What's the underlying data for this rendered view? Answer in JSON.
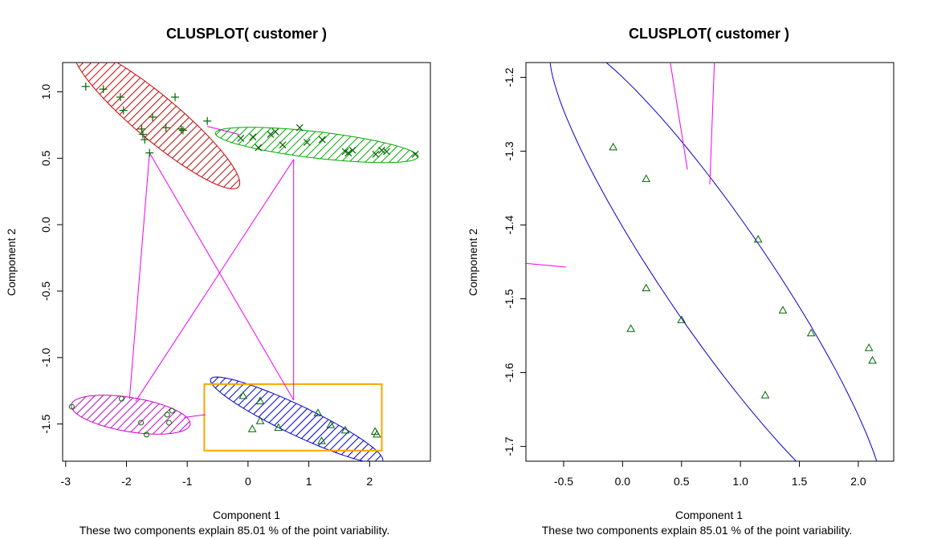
{
  "chart_data": [
    {
      "type": "scatter",
      "title": "CLUSPLOT( customer )",
      "xlabel": "Component 1",
      "ylabel": "Component 2",
      "subtitle": "These two components explain 85.01 % of the point variability.",
      "xlim": [
        -3.05,
        3.0
      ],
      "ylim": [
        -1.78,
        1.22
      ],
      "xticks": [
        "-3",
        "-2",
        "-1",
        "0",
        "1",
        "2"
      ],
      "yticks": [
        "-1.5",
        "-1.0",
        "-0.5",
        "0.0",
        "0.5",
        "1.0"
      ],
      "clusters": [
        {
          "marker": "plus",
          "color": "#cc0000",
          "fill": "hatched",
          "ellipse": {
            "cx": -1.5,
            "cy": 0.8,
            "a": 1.45,
            "b": 0.2,
            "angle_deg": -20
          },
          "points": [
            [
              -2.67,
              1.04
            ],
            [
              -2.38,
              1.02
            ],
            [
              -2.1,
              0.96
            ],
            [
              -2.05,
              0.86
            ],
            [
              -1.75,
              0.72
            ],
            [
              -1.73,
              0.68
            ],
            [
              -1.7,
              0.64
            ],
            [
              -1.57,
              0.81
            ],
            [
              -1.35,
              0.73
            ],
            [
              -1.2,
              0.96
            ],
            [
              -1.1,
              0.72
            ],
            [
              -1.07,
              0.71
            ],
            [
              -0.67,
              0.78
            ],
            [
              -1.62,
              0.54
            ]
          ]
        },
        {
          "marker": "cross",
          "color": "#00aa00",
          "fill": "hatched",
          "ellipse": {
            "cx": 1.13,
            "cy": 0.6,
            "a": 1.67,
            "b": 0.1,
            "angle_deg": -3
          },
          "points": [
            [
              -0.12,
              0.65
            ],
            [
              0.08,
              0.66
            ],
            [
              0.17,
              0.58
            ],
            [
              0.37,
              0.68
            ],
            [
              0.45,
              0.7
            ],
            [
              0.57,
              0.6
            ],
            [
              0.85,
              0.73
            ],
            [
              0.97,
              0.62
            ],
            [
              1.22,
              0.64
            ],
            [
              1.6,
              0.55
            ],
            [
              1.65,
              0.54
            ],
            [
              1.72,
              0.56
            ],
            [
              2.1,
              0.53
            ],
            [
              2.2,
              0.56
            ],
            [
              2.28,
              0.55
            ],
            [
              2.75,
              0.53
            ]
          ]
        },
        {
          "marker": "circle",
          "color": "#cc00cc",
          "fill": "hatched",
          "ellipse": {
            "cx": -1.93,
            "cy": -1.43,
            "a": 0.98,
            "b": 0.13,
            "angle_deg": -4
          },
          "points": [
            [
              -2.9,
              -1.37
            ],
            [
              -2.08,
              -1.31
            ],
            [
              -1.76,
              -1.49
            ],
            [
              -1.67,
              -1.58
            ],
            [
              -1.33,
              -1.43
            ],
            [
              -1.3,
              -1.49
            ],
            [
              -1.25,
              -1.4
            ]
          ]
        },
        {
          "marker": "triangle",
          "color": "#0000cc",
          "fill": "hatched",
          "ellipse": {
            "cx": 0.8,
            "cy": -1.47,
            "a": 1.45,
            "b": 0.12,
            "angle_deg": -12
          },
          "points": [
            [
              -0.08,
              -1.29
            ],
            [
              0.07,
              -1.54
            ],
            [
              0.2,
              -1.33
            ],
            [
              0.2,
              -1.48
            ],
            [
              0.5,
              -1.53
            ],
            [
              1.15,
              -1.42
            ],
            [
              1.21,
              -1.63
            ],
            [
              1.36,
              -1.51
            ],
            [
              1.6,
              -1.55
            ],
            [
              2.09,
              -1.56
            ],
            [
              2.12,
              -1.58
            ]
          ]
        }
      ],
      "links": [
        [
          [
            -1.62,
            0.54
          ],
          [
            -1.95,
            -1.31
          ]
        ],
        [
          [
            -1.62,
            0.54
          ],
          [
            0.75,
            -1.32
          ]
        ],
        [
          [
            0.75,
            0.49
          ],
          [
            0.75,
            -1.32
          ]
        ],
        [
          [
            0.75,
            0.49
          ],
          [
            -1.85,
            -1.33
          ]
        ],
        [
          [
            -0.67,
            0.74
          ],
          [
            -0.15,
            0.68
          ]
        ],
        [
          [
            -1.05,
            -1.45
          ],
          [
            -0.7,
            -1.43
          ]
        ]
      ],
      "zoom_box": {
        "x": [
          -0.72,
          2.2
        ],
        "y": [
          -1.7,
          -1.2
        ],
        "color": "#ffa500"
      }
    },
    {
      "type": "scatter",
      "title": "CLUSPLOT( customer )",
      "xlabel": "Component 1",
      "ylabel": "Component 2",
      "subtitle": "These two components explain 85.01 % of the point variability.",
      "xlim": [
        -0.82,
        2.3
      ],
      "ylim": [
        -1.72,
        -1.18
      ],
      "xticks": [
        "-0.5",
        "0.0",
        "0.5",
        "1.0",
        "1.5",
        "2.0"
      ],
      "yticks": [
        "-1.7",
        "-1.6",
        "-1.5",
        "-1.4",
        "-1.3",
        "-1.2"
      ],
      "clusters": [
        {
          "marker": "triangle",
          "color": "#0000cc",
          "fill": "none",
          "ellipse": {
            "cx": 0.8,
            "cy": -1.47,
            "a": 1.45,
            "b": 0.12,
            "angle_deg": -12
          },
          "points": [
            [
              -0.08,
              -1.295
            ],
            [
              0.07,
              -1.541
            ],
            [
              0.2,
              -1.338
            ],
            [
              0.2,
              -1.486
            ],
            [
              0.5,
              -1.529
            ],
            [
              1.15,
              -1.42
            ],
            [
              1.21,
              -1.631
            ],
            [
              1.36,
              -1.516
            ],
            [
              1.6,
              -1.547
            ],
            [
              2.09,
              -1.567
            ],
            [
              2.12,
              -1.584
            ]
          ]
        }
      ],
      "links": [
        [
          [
            0.4,
            -1.175
          ],
          [
            0.55,
            -1.325
          ]
        ],
        [
          [
            0.78,
            -1.175
          ],
          [
            0.74,
            -1.345
          ]
        ],
        [
          [
            -0.82,
            -1.452
          ],
          [
            -0.48,
            -1.457
          ]
        ]
      ]
    }
  ]
}
